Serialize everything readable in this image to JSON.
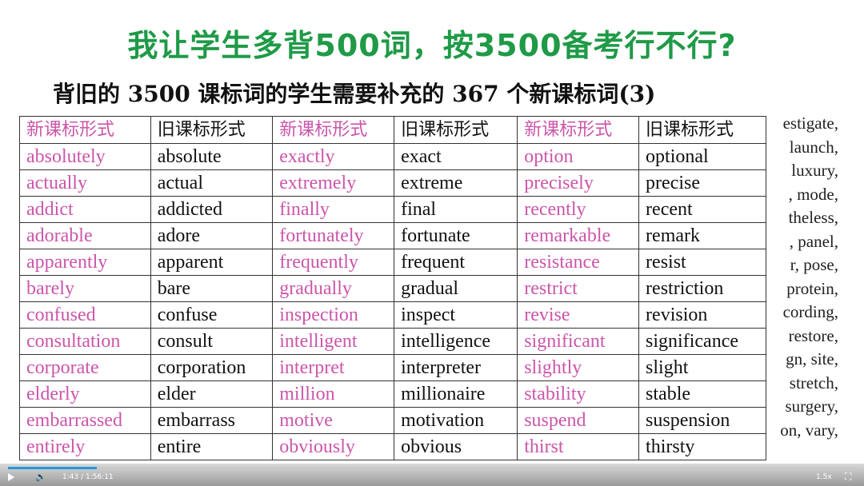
{
  "title": "我让学生多背500词，按3500备考行不行?",
  "subtitle": "背旧的 3500 课标词的学生需要补充的 367 个新课标词(3)",
  "headers": [
    "新课标形式",
    "旧课标形式",
    "新课标形式",
    "旧课标形式",
    "新课标形式",
    "旧课标形式"
  ],
  "rows": [
    [
      "absolutely",
      "absolute",
      "exactly",
      "exact",
      "option",
      "optional"
    ],
    [
      "actually",
      "actual",
      "extremely",
      "extreme",
      "precisely",
      "precise"
    ],
    [
      "addict",
      "addicted",
      "finally",
      "final",
      "recently",
      "recent"
    ],
    [
      "adorable",
      "adore",
      "fortunately",
      "fortunate",
      "remarkable",
      "remark"
    ],
    [
      "apparently",
      "apparent",
      "frequently",
      "frequent",
      "resistance",
      "resist"
    ],
    [
      "barely",
      "bare",
      "gradually",
      "gradual",
      "restrict",
      "restriction"
    ],
    [
      "confused",
      "confuse",
      "inspection",
      "inspect",
      "revise",
      "revision"
    ],
    [
      "consultation",
      "consult",
      "intelligent",
      "intelligence",
      "significant",
      "significance"
    ],
    [
      "corporate",
      "corporation",
      "interpret",
      "interpreter",
      "slightly",
      "slight"
    ],
    [
      "elderly",
      "elder",
      "million",
      "millionaire",
      "stability",
      "stable"
    ],
    [
      "embarrassed",
      "embarrass",
      "motive",
      "motivation",
      "suspend",
      "suspension"
    ],
    [
      "entirely",
      "entire",
      "obviously",
      "obvious",
      "thirst",
      "thirsty"
    ]
  ],
  "side_text": [
    "estigate,",
    "launch,",
    "luxury,",
    ", mode,",
    "theless,",
    ", panel,",
    "r,  pose,",
    "protein,",
    "cording,",
    "restore,",
    "gn, site,",
    "stretch,",
    "surgery,",
    "on, vary,"
  ],
  "colors": {
    "title": "#1f9a47",
    "new_form": "#cc55aa",
    "progress": "#1e9be0"
  },
  "player": {
    "time": "1:43 / 1:56:11",
    "speed": "1.5x",
    "progress_percent": 10.5,
    "icons": [
      "play-icon",
      "volume-icon",
      "fullscreen-icon"
    ]
  }
}
